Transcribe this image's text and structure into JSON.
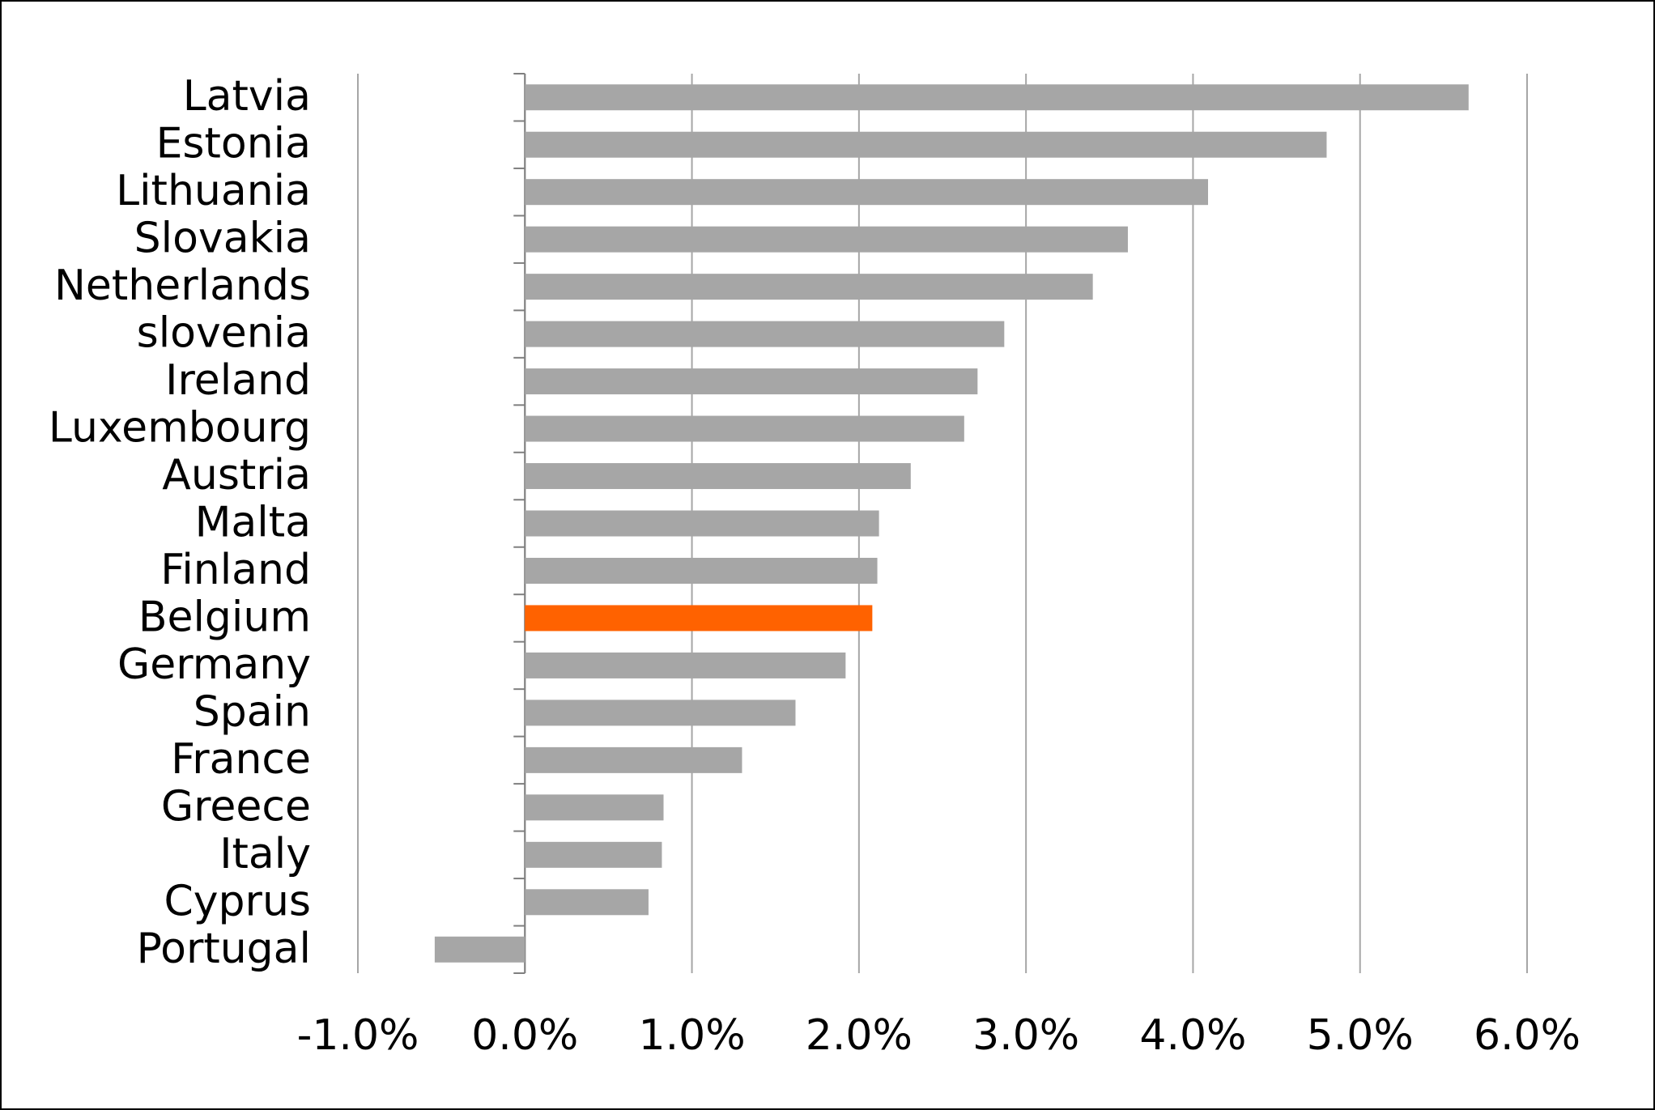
{
  "chart_data": {
    "type": "barh",
    "categories": [
      "Latvia",
      "Estonia",
      "Lithuania",
      "Slovakia",
      "Netherlands",
      "slovenia",
      "Ireland",
      "Luxembourg",
      "Austria",
      "Malta",
      "Finland",
      "Belgium",
      "Germany",
      "Spain",
      "France",
      "Greece",
      "Italy",
      "Cyprus",
      "Portugal"
    ],
    "values": [
      5.65,
      4.8,
      4.09,
      3.61,
      3.4,
      2.87,
      2.71,
      2.63,
      2.31,
      2.12,
      2.11,
      2.08,
      1.92,
      1.62,
      1.3,
      0.83,
      0.82,
      0.74,
      -0.54
    ],
    "colors": [
      "#a6a6a6",
      "#a6a6a6",
      "#a6a6a6",
      "#a6a6a6",
      "#a6a6a6",
      "#a6a6a6",
      "#a6a6a6",
      "#a6a6a6",
      "#a6a6a6",
      "#a6a6a6",
      "#a6a6a6",
      "#ff6200",
      "#a6a6a6",
      "#a6a6a6",
      "#a6a6a6",
      "#a6a6a6",
      "#a6a6a6",
      "#a6a6a6",
      "#a6a6a6"
    ],
    "xlim": [
      -1,
      6
    ],
    "xticks": [
      {
        "value": -1,
        "label": "-1.0%"
      },
      {
        "value": 0,
        "label": "0.0%"
      },
      {
        "value": 1,
        "label": "1.0%"
      },
      {
        "value": 2,
        "label": "2.0%"
      },
      {
        "value": 3,
        "label": "3.0%"
      },
      {
        "value": 4,
        "label": "4.0%"
      },
      {
        "value": 5,
        "label": "5.0%"
      },
      {
        "value": 6,
        "label": "6.0%"
      }
    ],
    "grid": true
  }
}
